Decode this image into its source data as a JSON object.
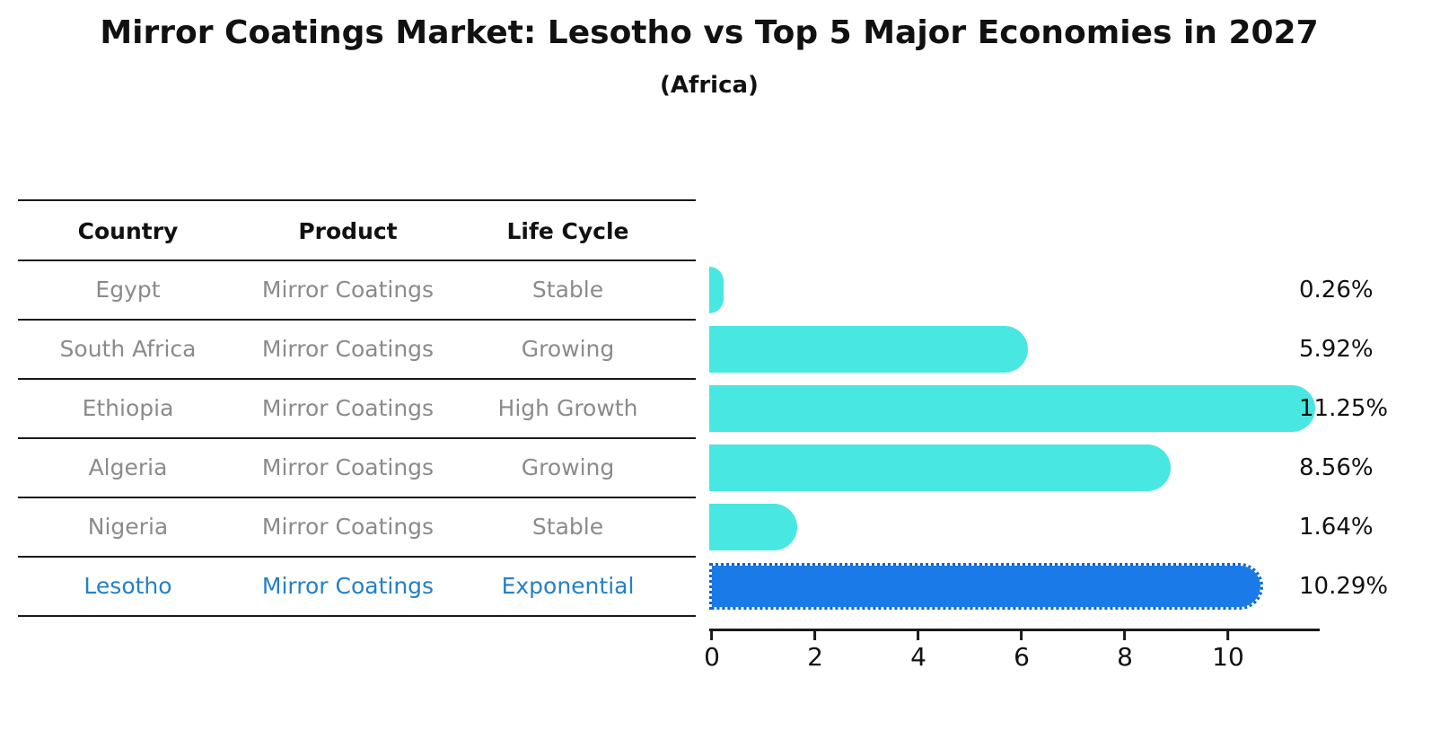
{
  "title": "Mirror Coatings Market: Lesotho vs Top 5 Major Economies in 2027",
  "subtitle": "(Africa)",
  "table": {
    "columns": [
      "Country",
      "Product",
      "Life Cycle"
    ],
    "rows": [
      {
        "country": "Egypt",
        "product": "Mirror Coatings",
        "life_cycle": "Stable",
        "value": 0.26,
        "label": "0.26%",
        "highlight": false
      },
      {
        "country": "South Africa",
        "product": "Mirror Coatings",
        "life_cycle": "Growing",
        "value": 5.92,
        "label": "5.92%",
        "highlight": false
      },
      {
        "country": "Ethiopia",
        "product": "Mirror Coatings",
        "life_cycle": "High Growth",
        "value": 11.25,
        "label": "11.25%",
        "highlight": false
      },
      {
        "country": "Algeria",
        "product": "Mirror Coatings",
        "life_cycle": "Growing",
        "value": 8.56,
        "label": "8.56%",
        "highlight": false
      },
      {
        "country": "Nigeria",
        "product": "Mirror Coatings",
        "life_cycle": "Stable",
        "value": 1.64,
        "label": "1.64%",
        "highlight": false
      },
      {
        "country": "Lesotho",
        "product": "Mirror Coatings",
        "life_cycle": "Exponential",
        "value": 10.29,
        "label": "10.29%",
        "highlight": true
      }
    ]
  },
  "axis": {
    "ticks": [
      "0",
      "2",
      "4",
      "6",
      "8",
      "10"
    ]
  },
  "colors": {
    "bar": "#48E7E2",
    "highlight_bar": "#1A7BE8",
    "highlight_bar_border": "#0E66CF",
    "highlight_text": "#2480C8",
    "row_text": "#8B8B8B",
    "header_text": "#111111",
    "line": "#1A1A1A"
  },
  "chart_data": {
    "type": "bar",
    "orientation": "horizontal",
    "title": "Mirror Coatings Market: Lesotho vs Top 5 Major Economies in 2027",
    "subtitle": "(Africa)",
    "categories": [
      "Egypt",
      "South Africa",
      "Ethiopia",
      "Algeria",
      "Nigeria",
      "Lesotho"
    ],
    "values": [
      0.26,
      5.92,
      11.25,
      8.56,
      1.64,
      10.29
    ],
    "value_labels": [
      "0.26%",
      "5.92%",
      "11.25%",
      "8.56%",
      "1.64%",
      "10.29%"
    ],
    "unit": "percent",
    "xlim": [
      0,
      11.8
    ],
    "xticks": [
      0,
      2,
      4,
      6,
      8,
      10
    ],
    "grid": false,
    "legend": "none",
    "highlight_category": "Lesotho",
    "bar_color": "#48E7E2",
    "highlight_bar_color": "#1A7BE8",
    "table_columns": [
      "Country",
      "Product",
      "Life Cycle"
    ],
    "table_rows": [
      [
        "Egypt",
        "Mirror Coatings",
        "Stable"
      ],
      [
        "South Africa",
        "Mirror Coatings",
        "Growing"
      ],
      [
        "Ethiopia",
        "Mirror Coatings",
        "High Growth"
      ],
      [
        "Algeria",
        "Mirror Coatings",
        "Growing"
      ],
      [
        "Nigeria",
        "Mirror Coatings",
        "Stable"
      ],
      [
        "Lesotho",
        "Mirror Coatings",
        "Exponential"
      ]
    ]
  }
}
